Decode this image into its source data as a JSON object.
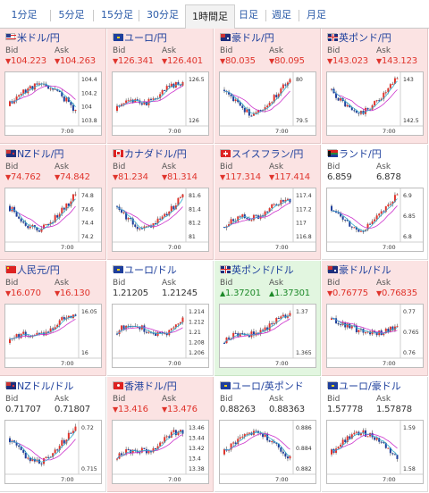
{
  "tabs": [
    {
      "label": "1分足",
      "active": false
    },
    {
      "label": "5分足",
      "active": false
    },
    {
      "label": "15分足",
      "active": false
    },
    {
      "label": "30分足",
      "active": false
    },
    {
      "label": "1時間足",
      "active": true
    },
    {
      "label": "日足",
      "active": false
    },
    {
      "label": "週足",
      "active": false
    },
    {
      "label": "月足",
      "active": false
    }
  ],
  "labels": {
    "bid": "Bid",
    "ask": "Ask",
    "time_tick": "7:00"
  },
  "colors": {
    "down": "#e0342c",
    "up": "#1e8a2a",
    "red_cell": "#fbe3e3",
    "green_cell": "#e2f6e0",
    "ma": "#cc33cc",
    "ma2": "#33aacc"
  },
  "pairs": [
    {
      "name": "米ドル/円",
      "flag": "us",
      "bid": "104.223",
      "ask": "104.263",
      "trend": "down",
      "bg": "red",
      "ticks": [
        "104.4",
        "104.2",
        "104",
        "103.8"
      ],
      "seed": 11,
      "shape": "updown"
    },
    {
      "name": "ユーロ/円",
      "flag": "eu",
      "bid": "126.341",
      "ask": "126.401",
      "trend": "down",
      "bg": "red",
      "ticks": [
        "126.5",
        "126"
      ],
      "seed": 23,
      "shape": "rise"
    },
    {
      "name": "豪ドル/円",
      "flag": "au",
      "bid": "80.035",
      "ask": "80.095",
      "trend": "down",
      "bg": "red",
      "ticks": [
        "80",
        "79.5"
      ],
      "seed": 37,
      "shape": "dipup"
    },
    {
      "name": "英ポンド/円",
      "flag": "gb",
      "bid": "143.023",
      "ask": "143.123",
      "trend": "down",
      "bg": "red",
      "ticks": [
        "143",
        "142.5"
      ],
      "seed": 41,
      "shape": "dipup"
    },
    {
      "name": "NZドル/円",
      "flag": "nz",
      "bid": "74.762",
      "ask": "74.842",
      "trend": "down",
      "bg": "red",
      "ticks": [
        "74.8",
        "74.6",
        "74.4",
        "74.2"
      ],
      "seed": 53,
      "shape": "dipup"
    },
    {
      "name": "カナダドル/円",
      "flag": "ca",
      "bid": "81.234",
      "ask": "81.314",
      "trend": "down",
      "bg": "red",
      "ticks": [
        "81.6",
        "81.4",
        "81.2",
        "81"
      ],
      "seed": 61,
      "shape": "dipup"
    },
    {
      "name": "スイスフラン/円",
      "flag": "ch",
      "bid": "117.314",
      "ask": "117.414",
      "trend": "down",
      "bg": "red",
      "ticks": [
        "117.4",
        "117.2",
        "117",
        "116.8"
      ],
      "seed": 71,
      "shape": "rise"
    },
    {
      "name": "ランド/円",
      "flag": "za",
      "bid": "6.859",
      "ask": "6.878",
      "trend": "flat",
      "bg": "white",
      "ticks": [
        "6.9",
        "6.85",
        "6.8"
      ],
      "seed": 83,
      "shape": "dipup"
    },
    {
      "name": "人民元/円",
      "flag": "cn",
      "bid": "16.070",
      "ask": "16.130",
      "trend": "down",
      "bg": "red",
      "ticks": [
        "16.05",
        "16"
      ],
      "seed": 97,
      "shape": "rise"
    },
    {
      "name": "ユーロ/ドル",
      "flag": "eu",
      "bid": "1.21205",
      "ask": "1.21245",
      "trend": "flat",
      "bg": "white",
      "ticks": [
        "1.214",
        "1.212",
        "1.21",
        "1.208",
        "1.206"
      ],
      "seed": 101,
      "shape": "flatup"
    },
    {
      "name": "英ポンド/ドル",
      "flag": "gb",
      "bid": "1.37201",
      "ask": "1.37301",
      "trend": "up",
      "bg": "green",
      "ticks": [
        "1.37",
        "1.365"
      ],
      "seed": 113,
      "shape": "rise"
    },
    {
      "name": "豪ドル/ドル",
      "flag": "au",
      "bid": "0.76775",
      "ask": "0.76835",
      "trend": "down",
      "bg": "red",
      "ticks": [
        "0.77",
        "0.765",
        "0.76"
      ],
      "seed": 127,
      "shape": "downup"
    },
    {
      "name": "NZドル/ドル",
      "flag": "nz",
      "bid": "0.71707",
      "ask": "0.71807",
      "trend": "flat",
      "bg": "white",
      "ticks": [
        "0.72",
        "0.715"
      ],
      "seed": 131,
      "shape": "dipup"
    },
    {
      "name": "香港ドル/円",
      "flag": "hk",
      "bid": "13.416",
      "ask": "13.476",
      "trend": "down",
      "bg": "red",
      "ticks": [
        "13.46",
        "13.44",
        "13.42",
        "13.4",
        "13.38"
      ],
      "seed": 149,
      "shape": "rise"
    },
    {
      "name": "ユーロ/英ポンド",
      "flag": "eu",
      "bid": "0.88263",
      "ask": "0.88363",
      "trend": "flat",
      "bg": "white",
      "ticks": [
        "0.886",
        "0.884",
        "0.882"
      ],
      "seed": 157,
      "shape": "updown"
    },
    {
      "name": "ユーロ/豪ドル",
      "flag": "eu",
      "bid": "1.57778",
      "ask": "1.57878",
      "trend": "flat",
      "bg": "white",
      "ticks": [
        "1.59",
        "1.58"
      ],
      "seed": 163,
      "shape": "updown"
    }
  ]
}
